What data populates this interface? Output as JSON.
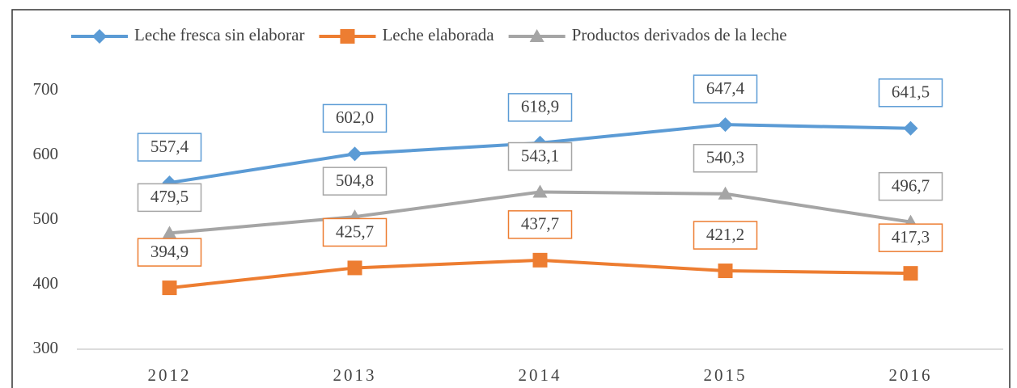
{
  "chart_data": {
    "type": "line",
    "categories": [
      "2012",
      "2013",
      "2014",
      "2015",
      "2016"
    ],
    "series": [
      {
        "name": "Leche fresca sin elaborar",
        "color": "#5b9bd5",
        "marker": "diamond",
        "values": [
          557.4,
          602.0,
          618.9,
          647.4,
          641.5
        ],
        "value_labels": [
          "557,4",
          "602,0",
          "618,9",
          "647,4",
          "641,5"
        ]
      },
      {
        "name": "Leche elaborada",
        "color": "#ed7d31",
        "marker": "square",
        "values": [
          394.9,
          425.7,
          437.7,
          421.2,
          417.3
        ],
        "value_labels": [
          "394,9",
          "425,7",
          "437,7",
          "421,2",
          "417,3"
        ]
      },
      {
        "name": "Productos derivados de la leche",
        "color": "#a5a5a5",
        "marker": "triangle",
        "values": [
          479.5,
          504.8,
          543.1,
          540.3,
          496.7
        ],
        "value_labels": [
          "479,5",
          "504,8",
          "543,1",
          "540,3",
          "496,7"
        ]
      }
    ],
    "ylim": [
      300,
      700
    ],
    "yticks": [
      300,
      400,
      500,
      600,
      700
    ],
    "grid": false,
    "legend": "top"
  }
}
